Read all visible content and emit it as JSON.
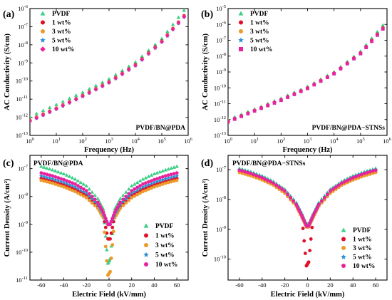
{
  "colors": {
    "PVDF": "#3ccf86",
    "1 wt%": "#e0102a",
    "3 wt%": "#ec9a2a",
    "5 wt%": "#2d8fd6",
    "10 wt%": "#e8219c"
  },
  "chart_data": [
    {
      "panel": "(a)",
      "type": "scatter",
      "subtitle": "PVDF/BN@PDA",
      "xlabel": "Frequency (Hz)",
      "ylabel": "AC Conductivity (S/cm)",
      "x_scale": "log",
      "y_scale": "log",
      "xlim": [
        1,
        1000000
      ],
      "ylim": [
        1e-13,
        1e-06
      ],
      "x_ticks": [
        "10^0",
        "10^1",
        "10^2",
        "10^3",
        "10^4",
        "10^5",
        "10^6"
      ],
      "y_ticks": [
        "10^-13",
        "10^-12",
        "10^-11",
        "10^-10",
        "10^-9",
        "10^-8",
        "10^-7",
        "10^-6"
      ],
      "legend_position": "top-left",
      "series": [
        {
          "name": "PVDF",
          "marker": "triangle",
          "x": [
            1,
            10,
            100,
            1000,
            10000,
            100000,
            700000
          ],
          "y": [
            1.1e-12,
            5e-12,
            2.4e-11,
            1.3e-10,
            1.1e-09,
            2.2e-08,
            8e-07
          ]
        },
        {
          "name": "1 wt%",
          "marker": "circle",
          "x": [
            1,
            10,
            100,
            1000,
            10000,
            100000,
            700000
          ],
          "y": [
            7e-13,
            3.2e-12,
            1.6e-11,
            9e-11,
            8e-10,
            1.6e-08,
            4e-07
          ]
        },
        {
          "name": "3 wt%",
          "marker": "circle",
          "x": [
            1,
            10,
            100,
            1000,
            10000,
            100000,
            700000
          ],
          "y": [
            6.5e-13,
            3e-12,
            1.5e-11,
            8.5e-11,
            7.5e-10,
            1.5e-08,
            3.6e-07
          ]
        },
        {
          "name": "5 wt%",
          "marker": "star",
          "x": [
            1,
            10,
            100,
            1000,
            10000,
            100000,
            700000
          ],
          "y": [
            6e-13,
            2.8e-12,
            1.4e-11,
            8e-11,
            7e-10,
            1.4e-08,
            3.4e-07
          ]
        },
        {
          "name": "10 wt%",
          "marker": "diamond",
          "x": [
            1,
            10,
            100,
            1000,
            10000,
            100000,
            700000
          ],
          "y": [
            6.2e-13,
            2.9e-12,
            1.45e-11,
            8.2e-11,
            7.2e-10,
            1.45e-08,
            3.5e-07
          ]
        }
      ]
    },
    {
      "panel": "(b)",
      "type": "scatter",
      "subtitle": "PVDF/BN@PDA−STNSs",
      "xlabel": "Frequency (Hz)",
      "ylabel": "AC Conductivity (S/cm)",
      "x_scale": "log",
      "y_scale": "log",
      "xlim": [
        1,
        1000000
      ],
      "ylim": [
        1e-13,
        1e-05
      ],
      "x_ticks": [
        "10^0",
        "10^1",
        "10^2",
        "10^3",
        "10^4",
        "10^5",
        "10^6"
      ],
      "y_ticks": [
        "10^-13",
        "10^-12",
        "10^-11",
        "10^-10",
        "10^-9",
        "10^-8",
        "10^-7",
        "10^-6",
        "10^-5"
      ],
      "legend_position": "top-left",
      "series": [
        {
          "name": "PVDF",
          "marker": "triangle",
          "x": [
            1,
            10,
            100,
            1000,
            10000,
            100000,
            700000
          ],
          "y": [
            1e-12,
            4.5e-12,
            2.2e-11,
            1.2e-10,
            1e-09,
            2e-08,
            9e-07
          ]
        },
        {
          "name": "1 wt%",
          "marker": "circle",
          "x": [
            1,
            10,
            100,
            1000,
            10000,
            100000,
            700000
          ],
          "y": [
            8e-13,
            3.8e-12,
            1.8e-11,
            1e-10,
            8.5e-10,
            1.6e-08,
            6e-07
          ]
        },
        {
          "name": "3 wt%",
          "marker": "circle",
          "x": [
            1,
            10,
            100,
            1000,
            10000,
            100000,
            700000
          ],
          "y": [
            7.5e-13,
            3.6e-12,
            1.7e-11,
            9.5e-11,
            8e-10,
            1.5e-08,
            5.5e-07
          ]
        },
        {
          "name": "5 wt%",
          "marker": "star",
          "x": [
            1,
            10,
            100,
            1000,
            10000,
            100000,
            700000
          ],
          "y": [
            7e-13,
            3.4e-12,
            1.6e-11,
            9e-11,
            7.6e-10,
            1.4e-08,
            5e-07
          ]
        },
        {
          "name": "10 wt%",
          "marker": "square",
          "x": [
            1,
            10,
            100,
            1000,
            10000,
            100000,
            700000
          ],
          "y": [
            7.2e-13,
            3.5e-12,
            1.65e-11,
            9.2e-11,
            7.8e-10,
            1.45e-08,
            5.2e-07
          ]
        }
      ]
    },
    {
      "panel": "(c)",
      "type": "scatter",
      "subtitle": "PVDF/BN@PDA",
      "xlabel": "Electric Field (kV/mm)",
      "ylabel": "Current Density (A/cm²)",
      "x_scale": "linear",
      "y_scale": "log",
      "xlim": [
        -70,
        70
      ],
      "ylim": [
        1e-11,
        3e-07
      ],
      "x_ticks": [
        "-60",
        "-40",
        "-20",
        "0",
        "20",
        "40",
        "60"
      ],
      "y_ticks": [
        "10^-11",
        "10^-10",
        "10^-9",
        "10^-8",
        "10^-7"
      ],
      "legend_position": "bottom-right",
      "series": [
        {
          "name": "PVDF",
          "marker": "triangle",
          "x": [
            -60,
            -50,
            -40,
            -30,
            -20,
            -10,
            -5,
            -1,
            1,
            5,
            10,
            20,
            30,
            40,
            50,
            60
          ],
          "y": [
            1.2e-07,
            9e-08,
            6.5e-08,
            4.2e-08,
            2.4e-08,
            8.5e-09,
            3.5e-09,
            4e-11,
            6e-11,
            3.5e-09,
            8.5e-09,
            2.4e-08,
            4.2e-08,
            6.5e-08,
            9e-08,
            1.2e-07
          ]
        },
        {
          "name": "1 wt%",
          "marker": "circle",
          "x": [
            -60,
            -50,
            -40,
            -30,
            -20,
            -10,
            -5,
            -1,
            1,
            5,
            10,
            20,
            30,
            40,
            50,
            60
          ],
          "y": [
            4.5e-08,
            3.5e-08,
            2.6e-08,
            1.8e-08,
            1.1e-08,
            4.5e-09,
            2e-09,
            3e-10,
            3e-10,
            2e-09,
            4.5e-09,
            1.1e-08,
            1.8e-08,
            2.6e-08,
            3.5e-08,
            4.5e-08
          ]
        },
        {
          "name": "3 wt%",
          "marker": "circle",
          "x": [
            -60,
            -50,
            -40,
            -30,
            -20,
            -10,
            -5,
            -1,
            1,
            5,
            10,
            20,
            30,
            40,
            50,
            60
          ],
          "y": [
            3.8e-08,
            3e-08,
            2.2e-08,
            1.5e-08,
            9e-09,
            3.8e-09,
            1.7e-09,
            1.5e-11,
            2e-11,
            1.7e-09,
            3.8e-09,
            9e-09,
            1.5e-08,
            2.2e-08,
            3e-08,
            3.8e-08
          ]
        },
        {
          "name": "5 wt%",
          "marker": "star",
          "x": [
            -60,
            -50,
            -40,
            -30,
            -20,
            -10,
            -5,
            -1,
            1,
            5,
            10,
            20,
            30,
            40,
            50,
            60
          ],
          "y": [
            5.5e-08,
            4.3e-08,
            3.2e-08,
            2.2e-08,
            1.3e-08,
            5.2e-09,
            2.3e-09,
            1e-09,
            1e-09,
            2.3e-09,
            5.2e-09,
            1.3e-08,
            2.2e-08,
            3.2e-08,
            4.3e-08,
            5.5e-08
          ]
        },
        {
          "name": "10 wt%",
          "marker": "circle",
          "x": [
            -60,
            -50,
            -40,
            -30,
            -20,
            -10,
            -5,
            -1,
            1,
            5,
            10,
            20,
            30,
            40,
            50,
            60
          ],
          "y": [
            7e-08,
            5.5e-08,
            4e-08,
            2.8e-08,
            1.6e-08,
            6.2e-09,
            2.7e-09,
            1e-09,
            1e-09,
            2.7e-09,
            6.2e-09,
            1.6e-08,
            2.8e-08,
            4e-08,
            5.5e-08,
            7e-08
          ]
        }
      ]
    },
    {
      "panel": "(d)",
      "type": "scatter",
      "subtitle": "PVDF/BN@PDA−STNSs",
      "xlabel": "Electric Field (kV/mm)",
      "ylabel": "Current Density (A/cm²)",
      "x_scale": "linear",
      "y_scale": "log",
      "xlim": [
        -70,
        70
      ],
      "ylim": [
        2e-11,
        3e-07
      ],
      "x_ticks": [
        "-60",
        "-40",
        "-20",
        "0",
        "20",
        "40",
        "60"
      ],
      "y_ticks": [
        "10^-10",
        "10^-9",
        "10^-8",
        "10^-7"
      ],
      "legend_position": "bottom-right",
      "series": [
        {
          "name": "PVDF",
          "marker": "triangle",
          "x": [
            -60,
            -50,
            -40,
            -30,
            -20,
            -10,
            -5,
            -1,
            1,
            5,
            10,
            20,
            30,
            40,
            50,
            60
          ],
          "y": [
            1.1e-07,
            8.5e-08,
            6.2e-08,
            4e-08,
            2.2e-08,
            8e-09,
            3.4e-09,
            1.5e-09,
            1.5e-09,
            3.4e-09,
            8e-09,
            2.2e-08,
            4e-08,
            6.2e-08,
            8.5e-08,
            1.1e-07
          ]
        },
        {
          "name": "1 wt%",
          "marker": "circle",
          "x": [
            -60,
            -50,
            -40,
            -30,
            -20,
            -10,
            -5,
            -1,
            1,
            5,
            10,
            20,
            30,
            40,
            50,
            60
          ],
          "y": [
            9e-08,
            7e-08,
            5e-08,
            3.3e-08,
            1.8e-08,
            6.5e-09,
            2.8e-09,
            6e-11,
            8e-11,
            2.8e-09,
            6.5e-09,
            1.8e-08,
            3.3e-08,
            5e-08,
            7e-08,
            9e-08
          ]
        },
        {
          "name": "3 wt%",
          "marker": "circle",
          "x": [
            -60,
            -50,
            -40,
            -30,
            -20,
            -10,
            -5,
            -1,
            1,
            5,
            10,
            20,
            30,
            40,
            50,
            60
          ],
          "y": [
            8e-08,
            6.2e-08,
            4.5e-08,
            3e-08,
            1.6e-08,
            6e-09,
            2.5e-09,
            1.2e-09,
            1.2e-09,
            2.5e-09,
            6e-09,
            1.6e-08,
            3e-08,
            4.5e-08,
            6.2e-08,
            8e-08
          ]
        },
        {
          "name": "5 wt%",
          "marker": "star",
          "x": [
            -60,
            -50,
            -40,
            -30,
            -20,
            -10,
            -5,
            -1,
            1,
            5,
            10,
            20,
            30,
            40,
            50,
            60
          ],
          "y": [
            1e-07,
            7.8e-08,
            5.6e-08,
            3.6e-08,
            2e-08,
            7.2e-09,
            3e-09,
            1.3e-09,
            1.3e-09,
            3e-09,
            7.2e-09,
            2e-08,
            3.6e-08,
            5.6e-08,
            7.8e-08,
            1e-07
          ]
        },
        {
          "name": "10 wt%",
          "marker": "circle",
          "x": [
            -60,
            -50,
            -40,
            -30,
            -20,
            -10,
            -5,
            -1,
            1,
            5,
            10,
            20,
            30,
            40,
            50,
            60
          ],
          "y": [
            9.5e-08,
            7.4e-08,
            5.3e-08,
            3.5e-08,
            1.9e-08,
            6.8e-09,
            2.9e-09,
            1.3e-09,
            1.3e-09,
            2.9e-09,
            6.8e-09,
            1.9e-08,
            3.5e-08,
            5.3e-08,
            7.4e-08,
            9.5e-08
          ]
        }
      ]
    }
  ]
}
